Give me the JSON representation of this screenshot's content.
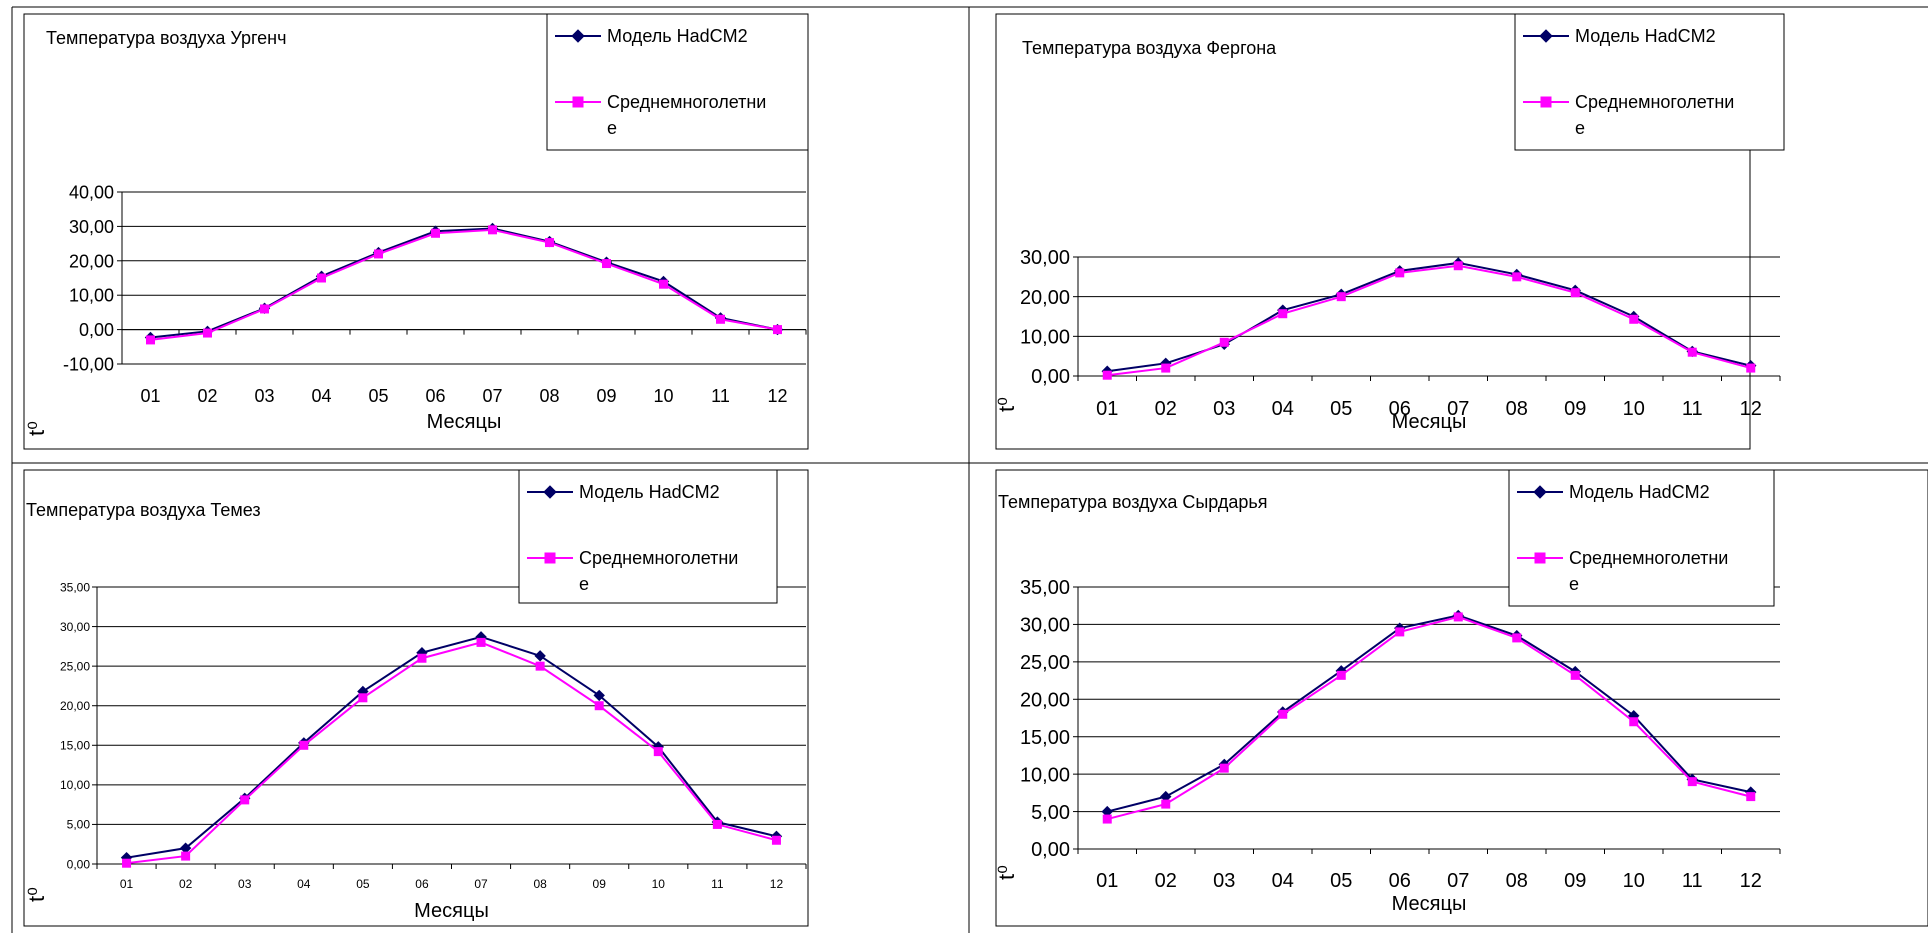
{
  "colors": {
    "series_1": "#000066",
    "series_2": "#FF00FF",
    "grid": "#000000",
    "frame": "#000000",
    "background": "#ffffff"
  },
  "chart_data": [
    {
      "type": "line",
      "title": "Температура воздуха Ургенч",
      "xlabel": "Месяцы",
      "ylabel": "t⁰",
      "categories": [
        "01",
        "02",
        "03",
        "04",
        "05",
        "06",
        "07",
        "08",
        "09",
        "10",
        "11",
        "12"
      ],
      "yticks": [
        "-10,00",
        "0,00",
        "10,00",
        "20,00",
        "30,00",
        "40,00"
      ],
      "ylim": [
        -10,
        40
      ],
      "grid": "horizontal",
      "legend_position": "top-right",
      "series": [
        {
          "name": "Модель HadCM2",
          "marker": "diamond",
          "values": [
            -2.3,
            -0.5,
            6.2,
            15.5,
            22.4,
            28.6,
            29.4,
            25.6,
            19.6,
            14.0,
            3.4,
            0.0
          ]
        },
        {
          "name": "Среднемноголетни е",
          "marker": "square",
          "values": [
            -3.0,
            -1.0,
            6.0,
            15.0,
            22.0,
            28.0,
            29.0,
            25.3,
            19.2,
            13.2,
            3.0,
            0.0
          ]
        }
      ]
    },
    {
      "type": "line",
      "title": "Температура воздуха Фергона",
      "xlabel": "Месяцы",
      "ylabel": "t⁰",
      "categories": [
        "01",
        "02",
        "03",
        "04",
        "05",
        "06",
        "07",
        "08",
        "09",
        "10",
        "11",
        "12"
      ],
      "yticks": [
        "0,00",
        "10,00",
        "20,00",
        "30,00"
      ],
      "ylim": [
        0,
        30
      ],
      "grid": "horizontal",
      "legend_position": "top-right",
      "series": [
        {
          "name": "Модель HadCM2",
          "marker": "diamond",
          "values": [
            1.2,
            3.2,
            8.0,
            16.6,
            20.6,
            26.5,
            28.5,
            25.6,
            21.6,
            15.0,
            6.2,
            2.6
          ]
        },
        {
          "name": "Среднемноголетни е",
          "marker": "square",
          "values": [
            0.2,
            2.0,
            8.5,
            15.7,
            20.0,
            26.0,
            27.8,
            25.0,
            21.0,
            14.3,
            6.0,
            2.0
          ]
        }
      ]
    },
    {
      "type": "line",
      "title": "Температура воздуха Темез",
      "xlabel": "Месяцы",
      "ylabel": "t⁰",
      "categories": [
        "01",
        "02",
        "03",
        "04",
        "05",
        "06",
        "07",
        "08",
        "09",
        "10",
        "11",
        "12"
      ],
      "yticks": [
        "0,00",
        "5,00",
        "10,00",
        "15,00",
        "20,00",
        "25,00",
        "30,00",
        "35,00"
      ],
      "ylim": [
        0,
        35
      ],
      "grid": "horizontal",
      "legend_position": "top-right",
      "series": [
        {
          "name": "Модель HadCM2",
          "marker": "diamond",
          "values": [
            0.8,
            2.0,
            8.3,
            15.3,
            21.8,
            26.7,
            28.7,
            26.3,
            21.3,
            14.8,
            5.3,
            3.5
          ]
        },
        {
          "name": "Среднемноголетни е",
          "marker": "square",
          "values": [
            0.1,
            1.0,
            8.1,
            15.0,
            21.0,
            26.0,
            28.0,
            25.0,
            20.0,
            14.2,
            5.0,
            3.0
          ]
        }
      ]
    },
    {
      "type": "line",
      "title": "Температура воздуха Сырдарья",
      "xlabel": "Месяцы",
      "ylabel": "t⁰",
      "categories": [
        "01",
        "02",
        "03",
        "04",
        "05",
        "06",
        "07",
        "08",
        "09",
        "10",
        "11",
        "12"
      ],
      "yticks": [
        "0,00",
        "5,00",
        "10,00",
        "15,00",
        "20,00",
        "25,00",
        "30,00",
        "35,00"
      ],
      "ylim": [
        0,
        35
      ],
      "grid": "horizontal",
      "legend_position": "top-right",
      "series": [
        {
          "name": "Модель HadCM2",
          "marker": "diamond",
          "values": [
            5.0,
            7.0,
            11.3,
            18.3,
            23.8,
            29.5,
            31.2,
            28.5,
            23.7,
            17.8,
            9.3,
            7.6
          ]
        },
        {
          "name": "Среднемноголетни е",
          "marker": "square",
          "values": [
            4.0,
            6.0,
            10.8,
            18.0,
            23.2,
            29.0,
            31.0,
            28.2,
            23.2,
            17.0,
            9.0,
            7.0
          ]
        }
      ]
    }
  ]
}
